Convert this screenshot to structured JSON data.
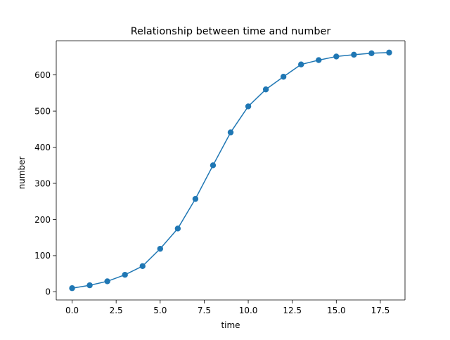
{
  "chart_data": {
    "type": "line",
    "title": "Relationship between time and number",
    "xlabel": "time",
    "ylabel": "number",
    "xlim": [
      -0.9,
      18.9
    ],
    "ylim": [
      -22.6,
      694.6
    ],
    "xticks": [
      0.0,
      2.5,
      5.0,
      7.5,
      10.0,
      12.5,
      15.0,
      17.5
    ],
    "xtick_labels": [
      "0.0",
      "2.5",
      "5.0",
      "7.5",
      "10.0",
      "12.5",
      "15.0",
      "17.5"
    ],
    "yticks": [
      0,
      100,
      200,
      300,
      400,
      500,
      600
    ],
    "ytick_labels": [
      "0",
      "100",
      "200",
      "300",
      "400",
      "500",
      "600"
    ],
    "grid": false,
    "series": [
      {
        "color": "#1f77b4",
        "marker": "circle",
        "x": [
          0,
          1,
          2,
          3,
          4,
          5,
          6,
          7,
          8,
          9,
          10,
          11,
          12,
          13,
          14,
          15,
          16,
          17,
          18
        ],
        "y": [
          10,
          18,
          29,
          47,
          71,
          119,
          175,
          257,
          350,
          441,
          513,
          560,
          595,
          629,
          641,
          651,
          656,
          660,
          662
        ]
      }
    ]
  }
}
